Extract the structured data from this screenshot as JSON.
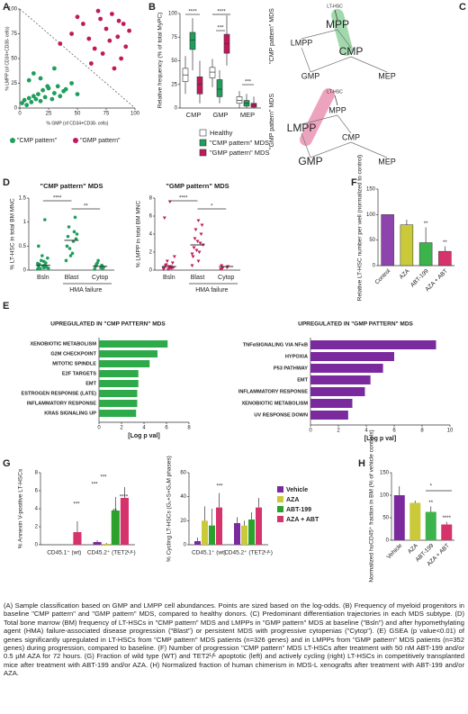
{
  "panels": {
    "A": {
      "letter": "A",
      "xlabel": "% GMP (of CD34+CD38- cells)",
      "ylabel": "% LMPP (of CD34+CD38- cells)",
      "xlim": [
        0,
        100
      ],
      "ylim": [
        0,
        100
      ],
      "xticks": [
        0,
        25,
        50,
        75,
        100
      ],
      "yticks": [
        0,
        25,
        50,
        75,
        100
      ],
      "groups": [
        {
          "name": "\"CMP pattern\"",
          "color": "#1f9e5c",
          "x": [
            2,
            4,
            6,
            8,
            10,
            12,
            14,
            16,
            18,
            20,
            22,
            25,
            28,
            30,
            33,
            35,
            38,
            40,
            45,
            50,
            8,
            12,
            18,
            24,
            30
          ],
          "y": [
            5,
            8,
            3,
            10,
            6,
            12,
            9,
            14,
            7,
            18,
            11,
            20,
            9,
            15,
            22,
            12,
            17,
            19,
            25,
            14,
            28,
            35,
            30,
            22,
            40
          ]
        },
        {
          "name": "\"GMP pattern\"",
          "color": "#c2185b",
          "x": [
            35,
            45,
            55,
            60,
            65,
            70,
            72,
            75,
            78,
            80,
            85,
            88,
            90,
            92,
            95,
            50,
            62,
            68,
            82,
            86
          ],
          "y": [
            65,
            75,
            85,
            70,
            60,
            90,
            55,
            80,
            68,
            95,
            72,
            50,
            85,
            62,
            78,
            92,
            45,
            98,
            40,
            88
          ]
        }
      ]
    },
    "B": {
      "letter": "B",
      "ylabel": "Relative frequency (% of total MyPC)",
      "categories": [
        "CMP",
        "GMP",
        "MEP"
      ],
      "ylim": [
        0,
        100
      ],
      "yticks": [
        0,
        25,
        50,
        75,
        100
      ],
      "series": [
        {
          "name": "Healthy",
          "color": "#ffffff",
          "values": [
            [
              15,
              28,
              35,
              42,
              55
            ],
            [
              22,
              32,
              38,
              43,
              52
            ],
            [
              0,
              5,
              8,
              12,
              18
            ]
          ]
        },
        {
          "name": "\"CMP pattern\" MDS",
          "color": "#1f9e5c",
          "values": [
            [
              40,
              62,
              72,
              80,
              95
            ],
            [
              5,
              12,
              20,
              30,
              40
            ],
            [
              0,
              2,
              5,
              8,
              15
            ]
          ]
        },
        {
          "name": "\"GMP pattern\" MDS",
          "color": "#c2185b",
          "values": [
            [
              5,
              15,
              25,
              33,
              50
            ],
            [
              45,
              58,
              68,
              78,
              98
            ],
            [
              0,
              1,
              3,
              5,
              12
            ]
          ]
        }
      ],
      "stars": [
        "****",
        "***",
        "****",
        "***"
      ]
    },
    "C": {
      "letter": "C",
      "titles": [
        "\"CMP pattern\" MDS",
        "\"GMP pattern\" MDS"
      ],
      "top": {
        "hsc": "LT-HSC",
        "nodes": [
          "MPP",
          "CMP",
          "LMPP",
          "GMP",
          "MEP"
        ]
      },
      "bottom": {
        "hsc": "LT-HSC",
        "nodes": [
          "MPP",
          "CMP",
          "LMPP",
          "GMP",
          "MEP"
        ]
      }
    },
    "D": {
      "letter": "D",
      "failure": "HMA failure",
      "charts": [
        {
          "title": "\"CMP pattern\" MDS",
          "ylabel": "% LT-HSC in total BM MNC",
          "categories": [
            "Bsln",
            "Blast",
            "Cytop"
          ],
          "ylim": [
            0,
            1.5
          ],
          "yticks": [
            0,
            0.5,
            1,
            1.5
          ],
          "color": "#1f9e5c",
          "points": [
            [
              0.02,
              0.05,
              0.08,
              0.1,
              0.12,
              0.15,
              0.03,
              0.06,
              0.2,
              0.25,
              0.3,
              0.04,
              0.09,
              0.14,
              0.18,
              0.5,
              1.05
            ],
            [
              0.2,
              0.35,
              0.5,
              0.6,
              0.7,
              0.8,
              0.9,
              1.1,
              0.45,
              0.65,
              0.3,
              0.75
            ],
            [
              0.02,
              0.05,
              0.08,
              0.1,
              0.12,
              0.04,
              0.15,
              0.06,
              0.2
            ]
          ],
          "means": [
            0.1,
            0.62,
            0.08
          ],
          "stars": [
            "****",
            "**"
          ]
        },
        {
          "title": "\"GMP pattern\" MDS",
          "ylabel": "% LMPP in total BM MNC",
          "categories": [
            "Bsln",
            "Blast",
            "Cytop"
          ],
          "ylim": [
            0,
            8
          ],
          "yticks": [
            0,
            2,
            4,
            6,
            8
          ],
          "color": "#c2185b",
          "points": [
            [
              0.1,
              0.2,
              0.3,
              0.4,
              0.5,
              0.2,
              0.6,
              0.8,
              1,
              0.3,
              0.1,
              1.5,
              0.4,
              0.2,
              7.6,
              5.8
            ],
            [
              0.5,
              1,
              1.5,
              2,
              2.5,
              3,
              3.5,
              4,
              4.5,
              5,
              2.2,
              2.8,
              3.2,
              1.8,
              5.5
            ],
            [
              0.1,
              0.3,
              0.5,
              0.4,
              0.2
            ]
          ],
          "means": [
            0.4,
            2.8,
            0.4
          ],
          "stars": [
            "****",
            "*"
          ]
        }
      ]
    },
    "E": {
      "letter": "E",
      "charts": [
        {
          "title": "UPREGULATED IN \"CMP PATTERN\" MDS",
          "xlabel": "[Log p val]",
          "xlim": [
            0,
            8
          ],
          "xticks": [
            0,
            2,
            4,
            6,
            8
          ],
          "color": "#2eaa4a",
          "categories": [
            "XENOBIOTIC METABOLISM",
            "G2M CHECKPOINT",
            "MITOTIC SPINDLE",
            "E2F TARGETS",
            "EMT",
            "ESTROGEN RESPONSE (LATE)",
            "INFLAMMATORY RESPONSE",
            "KRAS SIGNALING UP"
          ],
          "values": [
            6.1,
            5.2,
            4.5,
            3.5,
            3.5,
            3.4,
            3.4,
            3.3
          ]
        },
        {
          "title": "UPREGULATED IN \"GMP PATTERN\" MDS",
          "xlabel": "[Log p val]",
          "xlim": [
            0,
            10
          ],
          "xticks": [
            0,
            2,
            4,
            6,
            8,
            10
          ],
          "color": "#7b2a9e",
          "categories": [
            "TNFαSIGNALING VIA NFκB",
            "HYPOXIA",
            "P53 PATHWAY",
            "EMT",
            "INFLAMMATORY RESPONSE",
            "XENOBIOTIC METABOLISM",
            "UV RESPONSE DOWN"
          ],
          "values": [
            9,
            6,
            5.2,
            4.3,
            3.9,
            3,
            2.7
          ]
        }
      ]
    },
    "F": {
      "letter": "F",
      "ylabel": "Relative LT-HSC number per well (normalized to control)",
      "categories": [
        "Control",
        "AZA",
        "ABT-199",
        "AZA + ABT"
      ],
      "colors": [
        "#8e44ad",
        "#c9c93a",
        "#3cb44b",
        "#d6336c"
      ],
      "values": [
        100,
        80,
        45,
        28
      ],
      "errors": [
        0,
        10,
        30,
        10
      ],
      "ylim": [
        0,
        150
      ],
      "yticks": [
        0,
        50,
        100,
        150
      ],
      "stars": [
        "**",
        "**"
      ]
    },
    "G": {
      "letter": "G",
      "series": [
        {
          "name": "Vehicle",
          "color": "#7b2a9e"
        },
        {
          "name": "AZA",
          "color": "#c9c93a"
        },
        {
          "name": "ABT-199",
          "color": "#2ca02c"
        },
        {
          "name": "AZA + ABT",
          "color": "#d6336c"
        }
      ],
      "groups": [
        "CD45.1⁺ (wt)",
        "CD45.2⁺ (TET2ᴸ/ᴸ)"
      ],
      "charts": [
        {
          "ylabel": "% Annexin V-positive LT-HSCs",
          "ylim": [
            0,
            8
          ],
          "yticks": [
            0,
            2,
            4,
            6,
            8
          ],
          "values": [
            [
              0,
              0,
              0,
              1.4
            ],
            [
              0.3,
              0.1,
              3.8,
              5.2
            ]
          ],
          "errors": [
            [
              0,
              0,
              0,
              1.2
            ],
            [
              0.2,
              0.1,
              1.5,
              1.2
            ]
          ],
          "stars": [
            "***",
            "***",
            "***",
            "**",
            "****"
          ]
        },
        {
          "ylabel": "% Cycling LT-HSCs (G₁+S+G₂M phases)",
          "ylim": [
            0,
            60
          ],
          "yticks": [
            0,
            20,
            40,
            60
          ],
          "values": [
            [
              3,
              20,
              16,
              31
            ],
            [
              18,
              16,
              21,
              31
            ]
          ],
          "errors": [
            [
              3,
              12,
              14,
              12
            ],
            [
              5,
              4,
              6,
              8
            ]
          ],
          "stars": [
            "***"
          ]
        }
      ]
    },
    "H": {
      "letter": "H",
      "ylabel": "Normalized huCD45⁺ fraction in BM (% of vehicle controls)",
      "categories": [
        "Vehicle",
        "AZA",
        "ABT-199",
        "AZA + ABT"
      ],
      "colors": [
        "#7b2a9e",
        "#c9c93a",
        "#3cb44b",
        "#d6336c"
      ],
      "values": [
        100,
        83,
        63,
        35
      ],
      "errors": [
        20,
        5,
        12,
        6
      ],
      "ylim": [
        0,
        150
      ],
      "yticks": [
        0,
        50,
        100,
        150
      ],
      "stars": [
        "**",
        "****",
        "*"
      ]
    }
  },
  "caption": "(A) Sample classification based on GMP and LMPP cell abundances. Points are sized based on the log-odds. (B) Frequency of myeloid progenitors in baseline \"CMP pattern\" and \"GMP pattern\" MDS, compared to healthy donors. (C) Predominant differentiation trajectories in each MDS subtype. (D) Total bone marrow (BM) frequency of LT-HSCs in \"CMP pattern\" MDS and LMPPs in \"GMP pattern\" MDS at baseline (\"Bsln\") and after hypomethylating agent (HMA) failure-associated disease progression (\"Blast\") or persistent MDS with progressive cytopenias (\"Cytop\"). (E) GSEA (p value<0.01) of genes significantly upregulated in LT-HSCs from \"CMP pattern\" MDS patients (n=326 genes) and in LMPPs from \"GMP pattern\" MDS patients (n=352 genes) during progression, compared to baseline. (F) Number of progression \"CMP pattern\" MDS LT-HSCs after treatment with 50 nM ABT-199 and/or 0.5 µM AZA for 72 hours. (G) Fraction of wild type (WT) and TET2ᴸ/ᴸ apoptotic (left) and actively cycling (right) LT-HSCs in competitively transplanted mice after treatment with ABT-199 and/or AZA. (H) Normalized fraction of human chimerism in MDS-L xenografts after treatment with ABT-199 and/or AZA."
}
